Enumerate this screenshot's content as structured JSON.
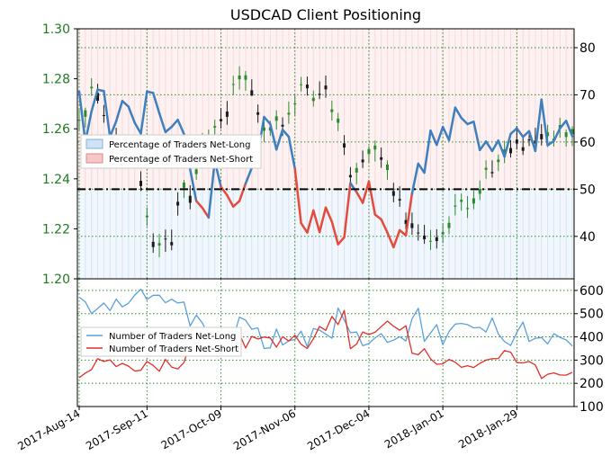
{
  "chart_data": [
    {
      "type": "line",
      "title": "USDCAD Client Positioning",
      "left_axis": {
        "ticks": [
          "1.20",
          "1.22",
          "1.24",
          "1.26",
          "1.28",
          "1.30"
        ],
        "ylim": [
          1.2,
          1.3
        ]
      },
      "right_axis": {
        "ticks": [
          "40",
          "50",
          "60",
          "70",
          "80"
        ],
        "ylim": [
          31,
          84
        ]
      },
      "x_ticks": [
        "2017-Aug-14",
        "2017-Sep-11",
        "2017-Oct-09",
        "2017-Nov-06",
        "2017-Dec-04",
        "2018-Jan-01",
        "2018-Jan-29"
      ],
      "threshold": 50,
      "legend": {
        "placement": "left",
        "long_label": "Percentage of Traders Net-Long",
        "short_label": "Percentage of Traders Net-Short"
      },
      "series_percent": [
        70.7,
        60,
        66.5,
        71.1,
        70.8,
        61.1,
        64.4,
        68.7,
        67.5,
        64.1,
        61.8,
        70.7,
        70.4,
        66.1,
        62.1,
        63.2,
        64.7,
        61.7,
        54.2,
        47.5,
        46,
        44,
        56,
        50.5,
        48.7,
        46.3,
        47.5,
        51.2,
        54.5,
        57.6,
        65.3,
        63.8,
        58.4,
        62.6,
        61.1,
        54.3,
        42.8,
        40.8,
        45.5,
        40.9,
        46.1,
        43.1,
        38.3,
        39.8,
        51.3,
        49.4,
        47.1,
        51.6,
        44.6,
        43.6,
        40.8,
        37.7,
        41.3,
        40.2,
        49.1,
        55.4,
        53.5,
        62.4,
        59.4,
        63.2,
        60.4,
        67.3,
        65.1,
        63.8,
        64.3,
        58.3,
        60.1,
        58.1,
        60.3,
        56.9,
        61.7,
        62.9,
        61.1,
        62.3,
        58.1,
        69,
        59.3,
        60.2,
        62.9,
        64.5,
        61.2
      ],
      "candles": [
        [
          1.2633,
          1.2677,
          1.259,
          1.2636
        ],
        [
          1.2648,
          1.2684,
          1.2605,
          1.2674
        ],
        [
          1.2762,
          1.2802,
          1.2732,
          1.2768
        ],
        [
          1.2744,
          1.278,
          1.2701,
          1.2712
        ],
        [
          1.2655,
          1.2695,
          1.2624,
          1.2651
        ],
        [
          1.2536,
          1.259,
          1.2501,
          1.2546
        ],
        [
          1.2566,
          1.2604,
          1.2536,
          1.2545
        ],
        [
          1.2509,
          1.2539,
          1.2463,
          1.2484
        ],
        [
          1.2522,
          1.2575,
          1.2477,
          1.2533
        ],
        [
          1.251,
          1.2549,
          1.2485,
          1.2514
        ],
        [
          1.2392,
          1.243,
          1.2351,
          1.2371
        ],
        [
          1.2246,
          1.2286,
          1.2211,
          1.2253
        ],
        [
          1.2148,
          1.2182,
          1.2104,
          1.2127
        ],
        [
          1.2133,
          1.218,
          1.2086,
          1.2143
        ],
        [
          1.2161,
          1.2197,
          1.2108,
          1.2158
        ],
        [
          1.2147,
          1.2197,
          1.2114,
          1.2134
        ],
        [
          1.2308,
          1.2346,
          1.2253,
          1.2293
        ],
        [
          1.2364,
          1.2396,
          1.2323,
          1.2385
        ],
        [
          1.2332,
          1.2374,
          1.2278,
          1.2304
        ],
        [
          1.2419,
          1.247,
          1.2396,
          1.2438
        ],
        [
          1.2535,
          1.2583,
          1.2506,
          1.2552
        ],
        [
          1.2555,
          1.2597,
          1.2506,
          1.2569
        ],
        [
          1.2605,
          1.2637,
          1.2568,
          1.2611
        ],
        [
          1.2639,
          1.2683,
          1.2601,
          1.263
        ],
        [
          1.2669,
          1.2711,
          1.2616,
          1.2648
        ],
        [
          1.2779,
          1.2812,
          1.2734,
          1.2779
        ],
        [
          1.2798,
          1.285,
          1.2757,
          1.2813
        ],
        [
          1.2796,
          1.2831,
          1.2752,
          1.2814
        ],
        [
          1.2754,
          1.2798,
          1.2731,
          1.2733
        ],
        [
          1.2666,
          1.2697,
          1.2624,
          1.2656
        ],
        [
          1.2592,
          1.2645,
          1.2548,
          1.2605
        ],
        [
          1.2593,
          1.2632,
          1.2572,
          1.2606
        ],
        [
          1.2632,
          1.2674,
          1.2597,
          1.265
        ],
        [
          1.2616,
          1.2646,
          1.2571,
          1.2609
        ],
        [
          1.2657,
          1.2709,
          1.262,
          1.2664
        ],
        [
          1.2698,
          1.2734,
          1.2652,
          1.2702
        ],
        [
          1.2775,
          1.2808,
          1.2749,
          1.2778
        ],
        [
          1.2777,
          1.2809,
          1.2733,
          1.2762
        ],
        [
          1.2711,
          1.2753,
          1.2689,
          1.2724
        ],
        [
          1.274,
          1.279,
          1.2719,
          1.2735
        ],
        [
          1.2773,
          1.2813,
          1.2724,
          1.2758
        ],
        [
          1.2667,
          1.2713,
          1.2633,
          1.2678
        ],
        [
          1.2624,
          1.2664,
          1.2591,
          1.2641
        ],
        [
          1.2542,
          1.2575,
          1.2495,
          1.2525
        ],
        [
          1.2415,
          1.2447,
          1.2374,
          1.2406
        ],
        [
          1.2425,
          1.2464,
          1.2378,
          1.2443
        ],
        [
          1.2477,
          1.2513,
          1.2443,
          1.2466
        ],
        [
          1.2499,
          1.2531,
          1.2465,
          1.2519
        ],
        [
          1.2517,
          1.2553,
          1.2469,
          1.2533
        ],
        [
          1.2486,
          1.2525,
          1.2444,
          1.2476
        ],
        [
          1.2435,
          1.2474,
          1.2396,
          1.2457
        ],
        [
          1.2351,
          1.2384,
          1.2306,
          1.2332
        ],
        [
          1.2319,
          1.237,
          1.2288,
          1.2313
        ],
        [
          1.2235,
          1.2265,
          1.2198,
          1.222
        ],
        [
          1.2222,
          1.2265,
          1.2176,
          1.2203
        ],
        [
          1.2185,
          1.2218,
          1.2153,
          1.2184
        ],
        [
          1.2173,
          1.2216,
          1.214,
          1.2158
        ],
        [
          1.215,
          1.2196,
          1.2115,
          1.2152
        ],
        [
          1.2166,
          1.2198,
          1.2121,
          1.2151
        ],
        [
          1.2178,
          1.222,
          1.2143,
          1.2187
        ],
        [
          1.2203,
          1.225,
          1.2178,
          1.2224
        ],
        [
          1.2289,
          1.2339,
          1.2254,
          1.2293
        ],
        [
          1.2308,
          1.2341,
          1.2272,
          1.2316
        ],
        [
          1.2279,
          1.2331,
          1.2243,
          1.2283
        ],
        [
          1.2301,
          1.2353,
          1.2278,
          1.2322
        ],
        [
          1.234,
          1.2393,
          1.2315,
          1.2359
        ],
        [
          1.2436,
          1.2474,
          1.24,
          1.2444
        ],
        [
          1.2427,
          1.2474,
          1.2405,
          1.2422
        ],
        [
          1.2467,
          1.2497,
          1.2431,
          1.2477
        ],
        [
          1.2502,
          1.2552,
          1.2463,
          1.2518
        ],
        [
          1.2523,
          1.2555,
          1.2485,
          1.2502
        ],
        [
          1.2557,
          1.2611,
          1.2517,
          1.2541
        ],
        [
          1.2526,
          1.2575,
          1.2495,
          1.2512
        ],
        [
          1.2558,
          1.2589,
          1.2531,
          1.2553
        ],
        [
          1.2553,
          1.2604,
          1.2514,
          1.2541
        ],
        [
          1.2579,
          1.2619,
          1.2533,
          1.2558
        ],
        [
          1.2571,
          1.2616,
          1.2527,
          1.2586
        ],
        [
          1.2552,
          1.2593,
          1.2529,
          1.2561
        ],
        [
          1.2601,
          1.2644,
          1.2565,
          1.2615
        ],
        [
          1.2567,
          1.2597,
          1.2529,
          1.2586
        ],
        [
          1.2578,
          1.261,
          1.2531,
          1.2599
        ]
      ]
    },
    {
      "type": "line",
      "right_axis": {
        "ticks": [
          "100",
          "200",
          "300",
          "400",
          "500",
          "600"
        ],
        "ylim": [
          100,
          650
        ]
      },
      "legend": {
        "placement": "left"
      },
      "series": [
        {
          "name": "Number of Traders Net-Long",
          "color": "#5aa0dc",
          "values": [
            571,
            551,
            500,
            522,
            546,
            513,
            563,
            529,
            545,
            580,
            605,
            561,
            579,
            579,
            547,
            562,
            546,
            550,
            447,
            494,
            459,
            407,
            379,
            391,
            388,
            396,
            485,
            472,
            433,
            439,
            350,
            353,
            434,
            365,
            383,
            389,
            425,
            358,
            436,
            429,
            412,
            394,
            524,
            472,
            418,
            421,
            362,
            371,
            396,
            414,
            376,
            386,
            401,
            382,
            478,
            523,
            381,
            416,
            453,
            366,
            423,
            455,
            458,
            453,
            439,
            441,
            421,
            482,
            412,
            380,
            363,
            419,
            464,
            380,
            394,
            397,
            370,
            414,
            398,
            387,
            361
          ]
        },
        {
          "name": "Number of Traders Net-Short",
          "color": "#e0302a",
          "values": [
            224,
            244,
            259,
            306,
            294,
            301,
            272,
            286,
            274,
            253,
            256,
            294,
            277,
            252,
            303,
            270,
            262,
            289,
            373,
            403,
            418,
            440,
            360,
            381,
            419,
            421,
            413,
            352,
            402,
            391,
            399,
            395,
            356,
            401,
            382,
            407,
            368,
            350,
            392,
            445,
            428,
            488,
            453,
            514,
            349,
            369,
            421,
            410,
            420,
            444,
            468,
            446,
            429,
            448,
            330,
            323,
            349,
            306,
            282,
            284,
            303,
            291,
            269,
            276,
            268,
            286,
            300,
            306,
            307,
            341,
            334,
            289,
            288,
            294,
            279,
            221,
            239,
            245,
            236,
            235,
            247
          ]
        }
      ]
    }
  ]
}
